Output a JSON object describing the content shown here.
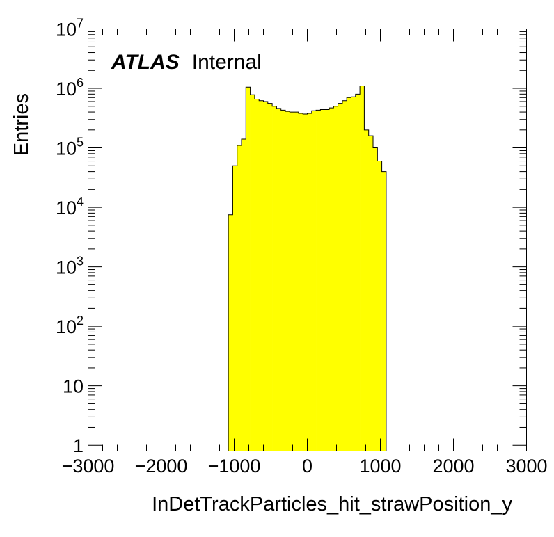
{
  "chart_data": {
    "type": "histogram",
    "title": "",
    "xlabel": "InDetTrackParticles_hit_strawPosition_y",
    "ylabel": "Entries",
    "xlim": [
      -3000,
      3000
    ],
    "ylim": [
      0.8,
      10000000
    ],
    "yscale": "log",
    "grid": false,
    "legend": "none",
    "fill_color": "#ffff00",
    "line_color": "#000000",
    "annotation": {
      "bold": "ATLAS",
      "normal": "Internal"
    },
    "x_ticks": [
      {
        "v": -3000,
        "label": "−3000"
      },
      {
        "v": -2000,
        "label": "−2000"
      },
      {
        "v": -1000,
        "label": "−1000"
      },
      {
        "v": 0,
        "label": "0"
      },
      {
        "v": 1000,
        "label": "1000"
      },
      {
        "v": 2000,
        "label": "2000"
      },
      {
        "v": 3000,
        "label": "3000"
      }
    ],
    "y_ticks": [
      {
        "v": 1,
        "base": "1",
        "exp": ""
      },
      {
        "v": 10,
        "base": "10",
        "exp": ""
      },
      {
        "v": 100,
        "base": "10",
        "exp": "2"
      },
      {
        "v": 1000,
        "base": "10",
        "exp": "3"
      },
      {
        "v": 10000,
        "base": "10",
        "exp": "4"
      },
      {
        "v": 100000,
        "base": "10",
        "exp": "5"
      },
      {
        "v": 1000000,
        "base": "10",
        "exp": "6"
      },
      {
        "v": 10000000,
        "base": "10",
        "exp": "7"
      }
    ],
    "bin_edges": [
      -1080,
      -1020,
      -960,
      -900,
      -840,
      -780,
      -720,
      -660,
      -600,
      -540,
      -480,
      -420,
      -360,
      -300,
      -240,
      -180,
      -120,
      -60,
      0,
      60,
      120,
      180,
      240,
      300,
      360,
      420,
      480,
      540,
      600,
      660,
      720,
      780,
      840,
      900,
      960,
      1020,
      1080
    ],
    "values": [
      7500,
      50000,
      110000,
      140000,
      1050000,
      780000,
      660000,
      620000,
      600000,
      560000,
      500000,
      460000,
      430000,
      410000,
      400000,
      400000,
      380000,
      370000,
      380000,
      420000,
      430000,
      440000,
      440000,
      470000,
      500000,
      560000,
      620000,
      700000,
      720000,
      800000,
      1100000,
      200000,
      160000,
      100000,
      60000,
      40000
    ]
  }
}
